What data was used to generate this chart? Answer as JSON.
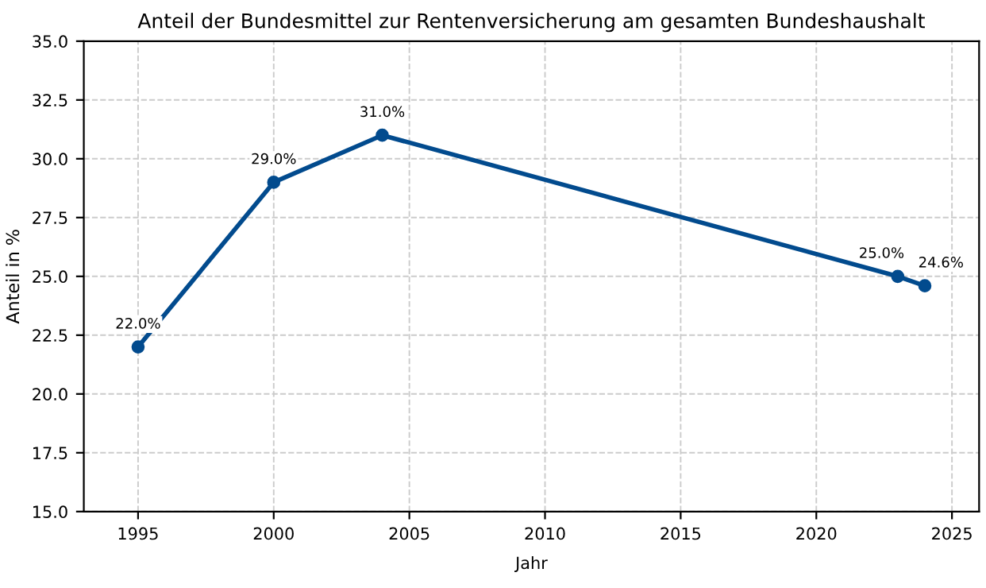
{
  "chart_data": {
    "type": "line",
    "title": "Anteil der Bundesmittel zur Rentenversicherung am gesamten Bundeshaushalt",
    "xlabel": "Jahr",
    "ylabel": "Anteil in %",
    "x": [
      1995,
      2000,
      2004,
      2023,
      2024
    ],
    "series": [
      {
        "color": "#024b8e",
        "values": [
          22.0,
          29.0,
          31.0,
          25.0,
          24.6
        ],
        "value_labels": [
          "22.0%",
          "29.0%",
          "31.0%",
          "25.0%",
          "24.6%"
        ]
      }
    ],
    "xlim": [
      1993,
      2026
    ],
    "xticks": [
      1995,
      2000,
      2005,
      2010,
      2015,
      2020,
      2025
    ],
    "ylim": [
      15,
      35
    ],
    "yticks": [
      {
        "value": 15,
        "label": "15.0"
      },
      {
        "value": 17.5,
        "label": "17.5"
      },
      {
        "value": 20,
        "label": "20.0"
      },
      {
        "value": 22.5,
        "label": "22.5"
      },
      {
        "value": 25,
        "label": "25.0"
      },
      {
        "value": 27.5,
        "label": "27.5"
      },
      {
        "value": 30,
        "label": "30.0"
      },
      {
        "value": 32.5,
        "label": "32.5"
      },
      {
        "value": 35,
        "label": "35.0"
      }
    ],
    "grid": true,
    "marker": "circle",
    "line_style": "solid"
  }
}
